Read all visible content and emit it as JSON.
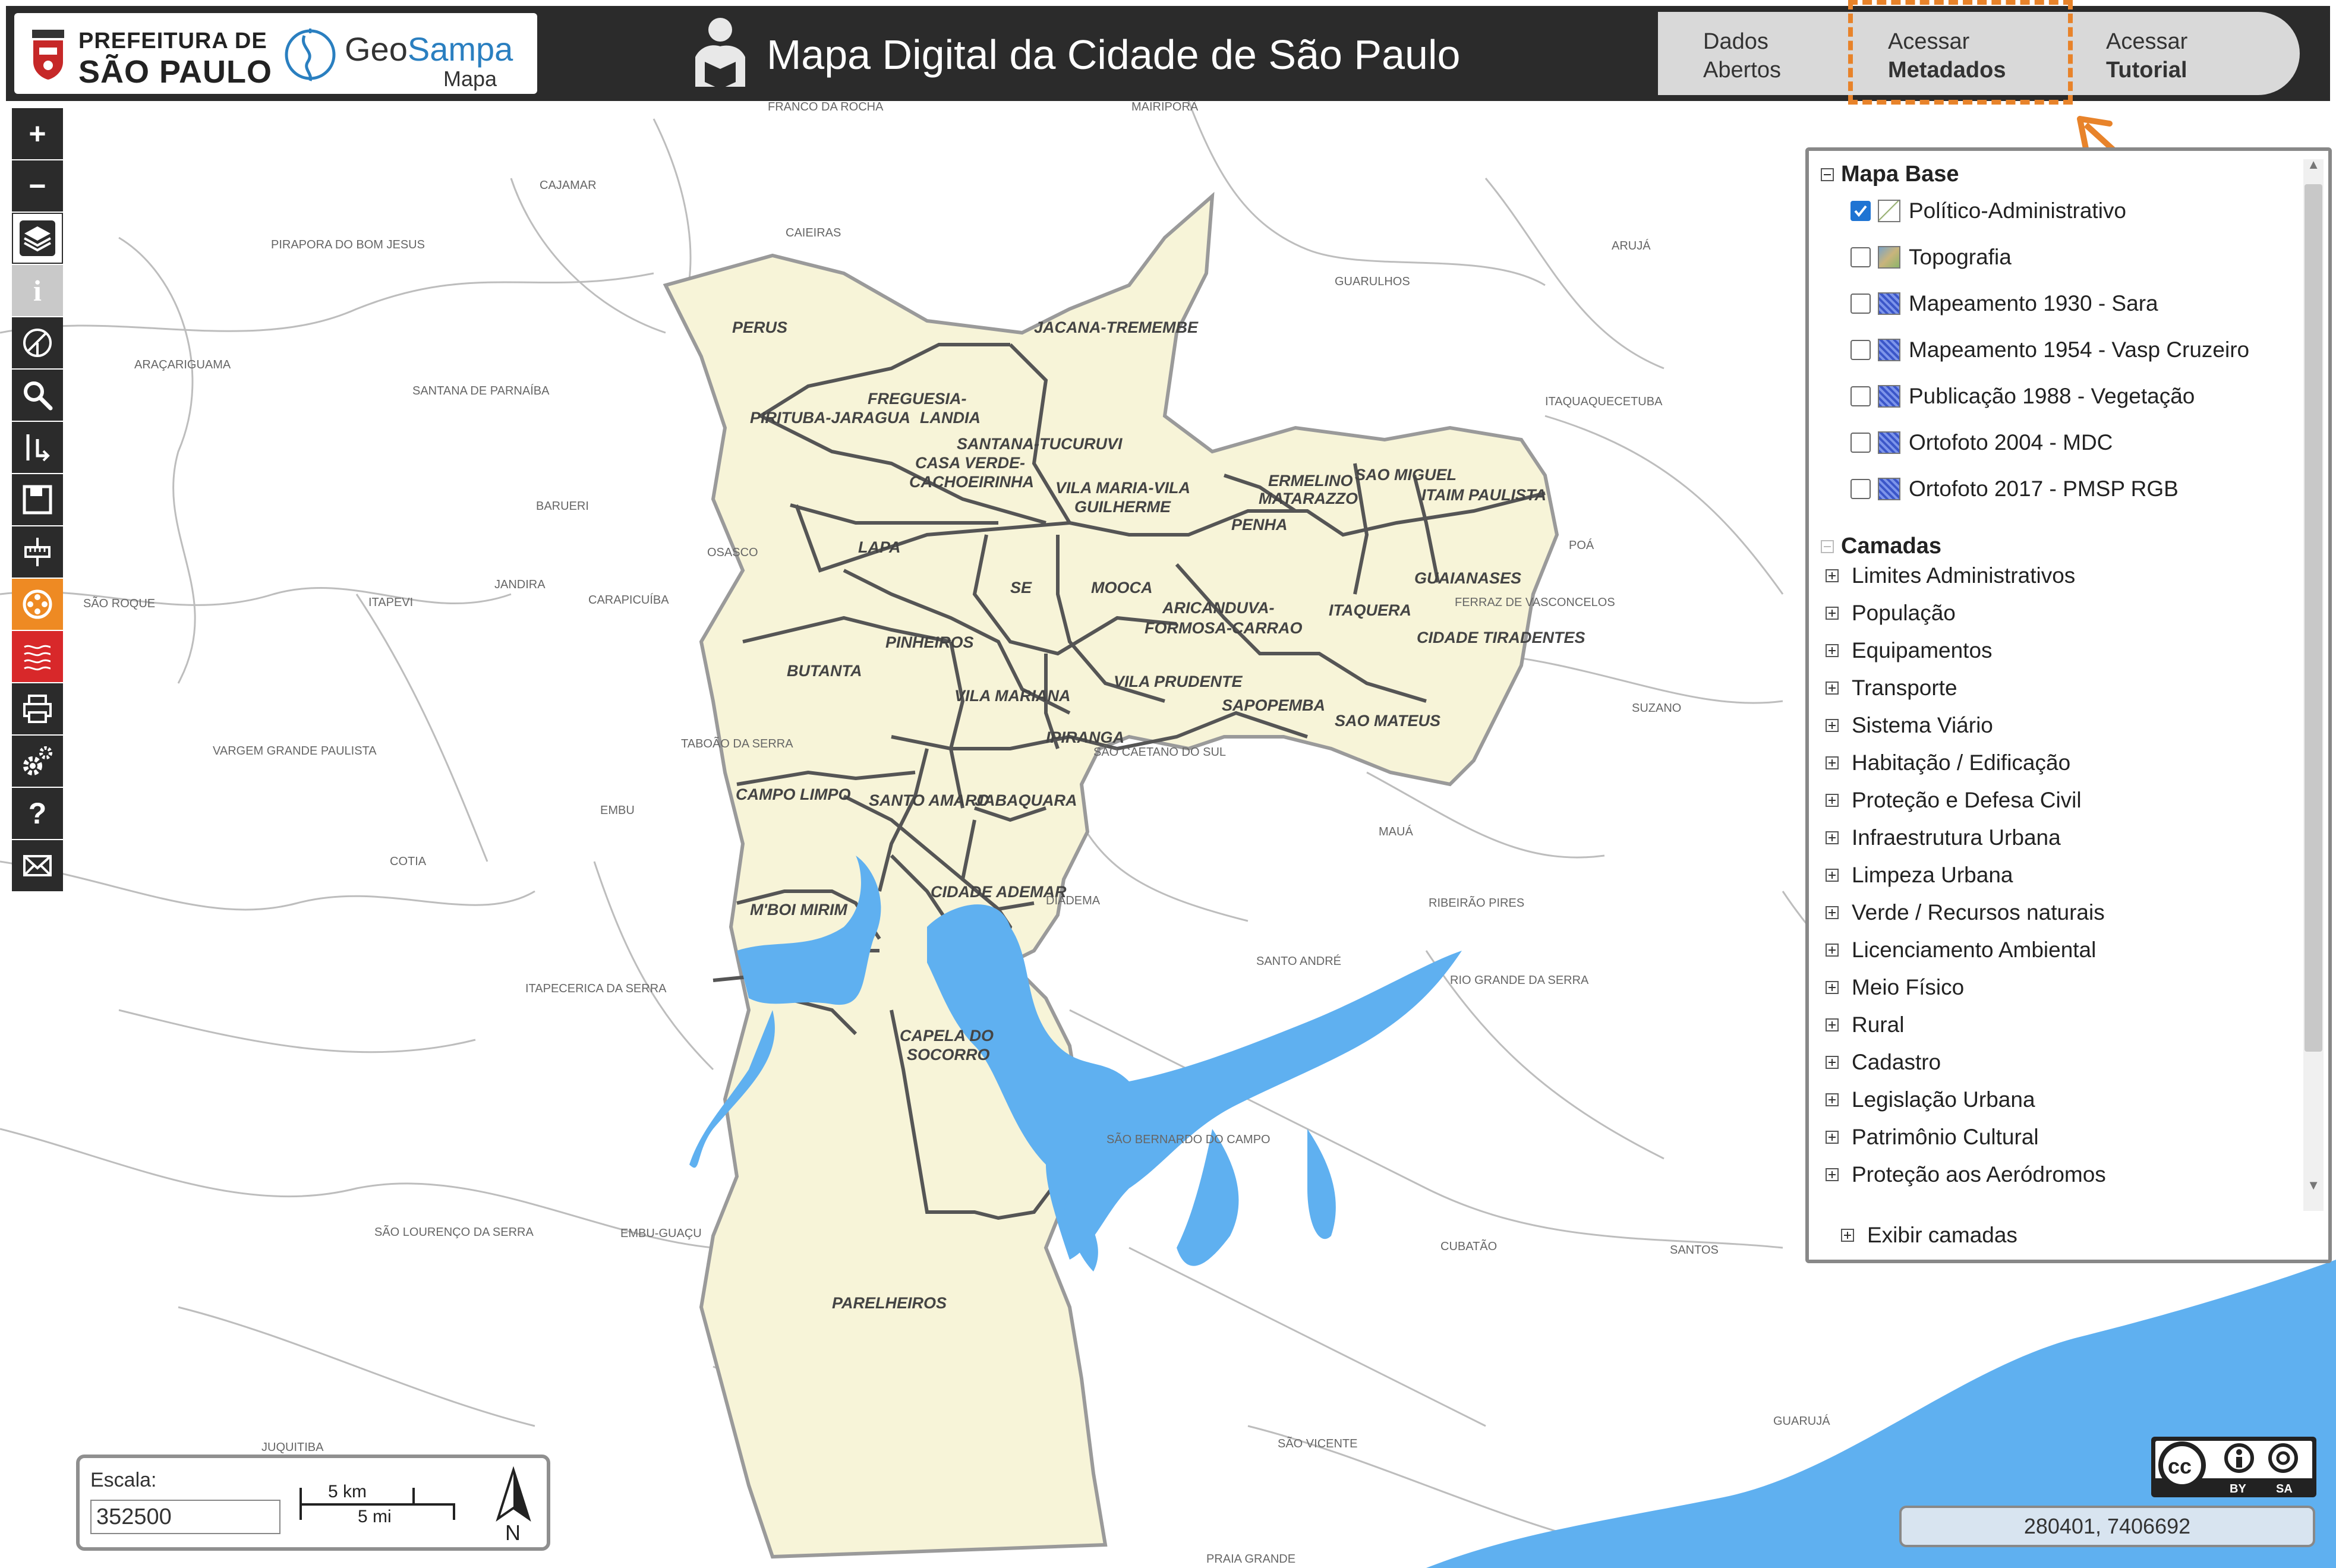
{
  "header": {
    "pref_line1": "PREFEITURA DE",
    "pref_line2": "SÃO PAULO",
    "geo_a": "Geo",
    "geo_b": "Sampa",
    "geo_sub": "Mapa",
    "title": "Mapa Digital da Cidade de São Paulo",
    "tabs": [
      {
        "line1": "Dados",
        "line2": "Abertos"
      },
      {
        "line1": "Acessar",
        "line2": "Metadados"
      },
      {
        "line1": "Acessar",
        "line2": "Tutorial"
      }
    ],
    "highlight_color": "#e8832a"
  },
  "toolbar": [
    {
      "icon": "zoom-in-icon",
      "glyph": "+"
    },
    {
      "icon": "zoom-out-icon",
      "glyph": "−"
    },
    {
      "icon": "layers-icon"
    },
    {
      "icon": "info-icon",
      "glyph": "i"
    },
    {
      "icon": "measure-icon"
    },
    {
      "icon": "search-icon"
    },
    {
      "icon": "route-icon"
    },
    {
      "icon": "save-icon"
    },
    {
      "icon": "ruler-icon"
    },
    {
      "icon": "film-icon"
    },
    {
      "icon": "hazard-icon"
    },
    {
      "icon": "print-icon"
    },
    {
      "icon": "settings-icon"
    },
    {
      "icon": "help-icon",
      "glyph": "?"
    },
    {
      "icon": "mail-icon"
    }
  ],
  "layer_panel": {
    "base_title": "Mapa Base",
    "base_items": [
      {
        "label": "Político-Administrativo",
        "checked": true,
        "swatch": "pol"
      },
      {
        "label": "Topografia",
        "checked": false,
        "swatch": "topo"
      },
      {
        "label": "Mapeamento 1930 - Sara",
        "checked": false,
        "swatch": "sat"
      },
      {
        "label": "Mapeamento 1954 - Vasp Cruzeiro",
        "checked": false,
        "swatch": "sat"
      },
      {
        "label": "Publicação 1988 - Vegetação",
        "checked": false,
        "swatch": "sat"
      },
      {
        "label": "Ortofoto 2004 - MDC",
        "checked": false,
        "swatch": "sat"
      },
      {
        "label": "Ortofoto 2017 - PMSP RGB",
        "checked": false,
        "swatch": "sat"
      }
    ],
    "layers_title": "Camadas",
    "layers": [
      "Limites Administrativos",
      "População",
      "Equipamentos",
      "Transporte",
      "Sistema Viário",
      "Habitação / Edificação",
      "Proteção e Defesa Civil",
      "Infraestrutura Urbana",
      "Limpeza Urbana",
      "Verde / Recursos naturais",
      "Licenciamento Ambiental",
      "Meio Físico",
      "Rural",
      "Cadastro",
      "Legislação Urbana",
      "Patrimônio Cultural",
      "Proteção aos Aeródromos"
    ],
    "show_layers": "Exibir camadas"
  },
  "map": {
    "districts": [
      {
        "name": "PERUS"
      },
      {
        "name": "JACANA-TREMEMBE"
      },
      {
        "name": "FREGUESIA-"
      },
      {
        "name": "PIRITUBA-JARAGUA"
      },
      {
        "name": "LANDIA"
      },
      {
        "name": "SANTANA-TUCURUVI"
      },
      {
        "name": "CASA VERDE-"
      },
      {
        "name": "CACHOEIRINHA"
      },
      {
        "name": "VILA MARIA-VILA"
      },
      {
        "name": "GUILHERME"
      },
      {
        "name": "ERMELINO"
      },
      {
        "name": "MATARAZZO"
      },
      {
        "name": "SAO MIGUEL"
      },
      {
        "name": "ITAIM PAULISTA"
      },
      {
        "name": "PENHA"
      },
      {
        "name": "LAPA"
      },
      {
        "name": "SE"
      },
      {
        "name": "MOOCA"
      },
      {
        "name": "GUAIANASES"
      },
      {
        "name": "ARICANDUVA-"
      },
      {
        "name": "FORMOSA-CARRAO"
      },
      {
        "name": "ITAQUERA"
      },
      {
        "name": "PINHEIROS"
      },
      {
        "name": "CIDADE TIRADENTES"
      },
      {
        "name": "BUTANTA"
      },
      {
        "name": "VILA MARIANA"
      },
      {
        "name": "VILA PRUDENTE"
      },
      {
        "name": "SAPOPEMBA"
      },
      {
        "name": "SAO MATEUS"
      },
      {
        "name": "IPIRANGA"
      },
      {
        "name": "CAMPO LIMPO"
      },
      {
        "name": "SANTO AMARO"
      },
      {
        "name": "JABAQUARA"
      },
      {
        "name": "CIDADE ADEMAR"
      },
      {
        "name": "M'BOI MIRIM"
      },
      {
        "name": "CAPELA DO"
      },
      {
        "name": "SOCORRO"
      },
      {
        "name": "PARELHEIROS"
      }
    ],
    "municipalities": [
      {
        "name": "FRANCO DA ROCHA"
      },
      {
        "name": "MAIRIPORÃ"
      },
      {
        "name": "CAJAMAR"
      },
      {
        "name": "CAIEIRAS"
      },
      {
        "name": "PIRAPORA DO BOM JESUS"
      },
      {
        "name": "GUARULHOS"
      },
      {
        "name": "ARUJÁ"
      },
      {
        "name": "ARAÇARIGUAMA"
      },
      {
        "name": "SANTANA DE PARNAÍBA"
      },
      {
        "name": "ITAQUAQUECETUBA"
      },
      {
        "name": "BARUERI"
      },
      {
        "name": "OSASCO"
      },
      {
        "name": "POÁ"
      },
      {
        "name": "SÃO ROQUE"
      },
      {
        "name": "ITAPEVI"
      },
      {
        "name": "JANDIRA"
      },
      {
        "name": "CARAPICUÍBA"
      },
      {
        "name": "FERRAZ DE VASCONCELOS"
      },
      {
        "name": "TABOÃO DA SERRA"
      },
      {
        "name": "SÃO CAETANO DO SUL"
      },
      {
        "name": "SUZANO"
      },
      {
        "name": "VARGEM GRANDE PAULISTA"
      },
      {
        "name": "EMBU"
      },
      {
        "name": "MAUÁ"
      },
      {
        "name": "COTIA"
      },
      {
        "name": "DIADEMA"
      },
      {
        "name": "RIBEIRÃO PIRES"
      },
      {
        "name": "SANTO ANDRÉ"
      },
      {
        "name": "RIO GRANDE DA SERRA"
      },
      {
        "name": "ITAPECERICA DA SERRA"
      },
      {
        "name": "SÃO BERNARDO DO CAMPO"
      },
      {
        "name": "SÃO LOURENÇO DA SERRA"
      },
      {
        "name": "EMBU-GUAÇU"
      },
      {
        "name": "CUBATÃO"
      },
      {
        "name": "SANTOS"
      },
      {
        "name": "JUQUITIBA"
      },
      {
        "name": "SÃO VICENTE"
      },
      {
        "name": "GUARUJÁ"
      },
      {
        "name": "PRAIA GRANDE"
      }
    ],
    "city_fill": "#f7f4d8",
    "water_color": "#5fb0f0"
  },
  "scale": {
    "label": "Escala:",
    "value": "352500",
    "km": "5 km",
    "mi": "5 mi",
    "north": "N"
  },
  "coordinates": "280401, 7406692",
  "license": {
    "by": "BY",
    "sa": "SA"
  }
}
